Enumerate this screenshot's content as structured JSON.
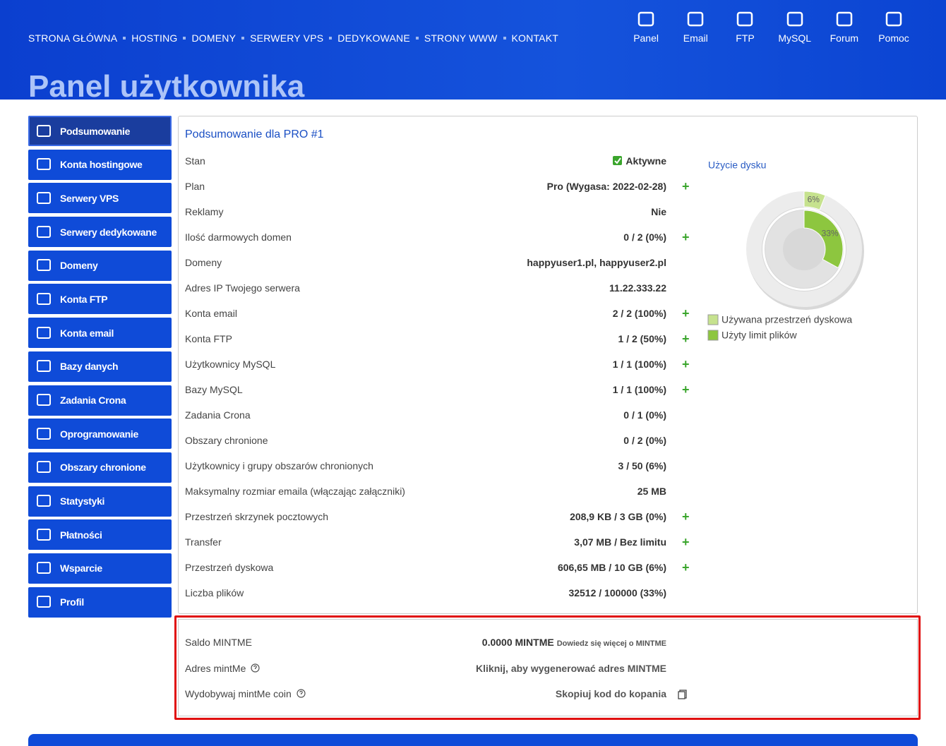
{
  "nav": [
    "STRONA GŁÓWNA",
    "HOSTING",
    "DOMENY",
    "SERWERY VPS",
    "DEDYKOWANE",
    "STRONY WWW",
    "KONTAKT"
  ],
  "top_icons": [
    "Panel",
    "Email",
    "FTP",
    "MySQL",
    "Forum",
    "Pomoc"
  ],
  "page_title": "Panel użytkownika",
  "sidebar": [
    "Podsumowanie",
    "Konta hostingowe",
    "Serwery VPS",
    "Serwery dedykowane",
    "Domeny",
    "Konta FTP",
    "Konta email",
    "Bazy danych",
    "Zadania Crona",
    "Oprogramowanie",
    "Obszary chronione",
    "Statystyki",
    "Płatności",
    "Wsparcie",
    "Profil"
  ],
  "summary": {
    "title": "Podsumowanie dla PRO #1",
    "rows": [
      {
        "label": "Stan",
        "value": "Aktywne",
        "check": true
      },
      {
        "label": "Plan",
        "value": "Pro (Wygasa: 2022-02-28)",
        "add": true
      },
      {
        "label": "Reklamy",
        "value": "Nie"
      },
      {
        "label": "Ilość darmowych domen",
        "value": "0 / 2 (0%)",
        "add": true
      },
      {
        "label": "Domeny",
        "value": "happyuser1.pl, happyuser2.pl"
      },
      {
        "label": "Adres IP Twojego serwera",
        "value": "11.22.333.22"
      },
      {
        "label": "Konta email",
        "value": "2 / 2 (100%)",
        "add": true
      },
      {
        "label": "Konta FTP",
        "value": "1 / 2 (50%)",
        "add": true
      },
      {
        "label": "Użytkownicy MySQL",
        "value": "1 / 1 (100%)",
        "add": true
      },
      {
        "label": "Bazy MySQL",
        "value": "1 / 1 (100%)",
        "add": true
      },
      {
        "label": "Zadania Crona",
        "value": "0 / 1 (0%)"
      },
      {
        "label": "Obszary chronione",
        "value": "0 / 2 (0%)"
      },
      {
        "label": "Użytkownicy i grupy obszarów chronionych",
        "value": "3 / 50 (6%)"
      },
      {
        "label": "Maksymalny rozmiar emaila (włączając załączniki)",
        "value": "25 MB"
      },
      {
        "label": "Przestrzeń skrzynek pocztowych",
        "value": "208,9 KB / 3 GB (0%)",
        "add": true
      },
      {
        "label": "Transfer",
        "value": "3,07 MB / Bez limitu",
        "add": true
      },
      {
        "label": "Przestrzeń dyskowa",
        "value": "606,65 MB / 10 GB (6%)",
        "add": true
      },
      {
        "label": "Liczba plików",
        "value": "32512 / 100000 (33%)"
      }
    ]
  },
  "chart_data": {
    "type": "donut",
    "title": "Użycie dysku",
    "series": [
      {
        "name": "Używana przestrzeń dyskowa",
        "color": "#c6e28e",
        "values": [
          6
        ],
        "value_labels": [
          "6%"
        ]
      },
      {
        "name": "Użyty limit plików",
        "color": "#8dc63f",
        "values": [
          33
        ],
        "value_labels": [
          "33%"
        ]
      }
    ]
  },
  "mintme": {
    "rows": [
      {
        "label": "Saldo MINTME",
        "value": "0.0000 MINTME",
        "note": "Dowiedz się więcej o MINTME"
      },
      {
        "label": "Adres mintMe",
        "value": "Kliknij, aby wygenerować adres MINTME",
        "help": true
      },
      {
        "label": "Wydobywaj mintMe coin",
        "value": "Skopiuj kod do kopania",
        "help": true,
        "copy": true
      }
    ]
  }
}
